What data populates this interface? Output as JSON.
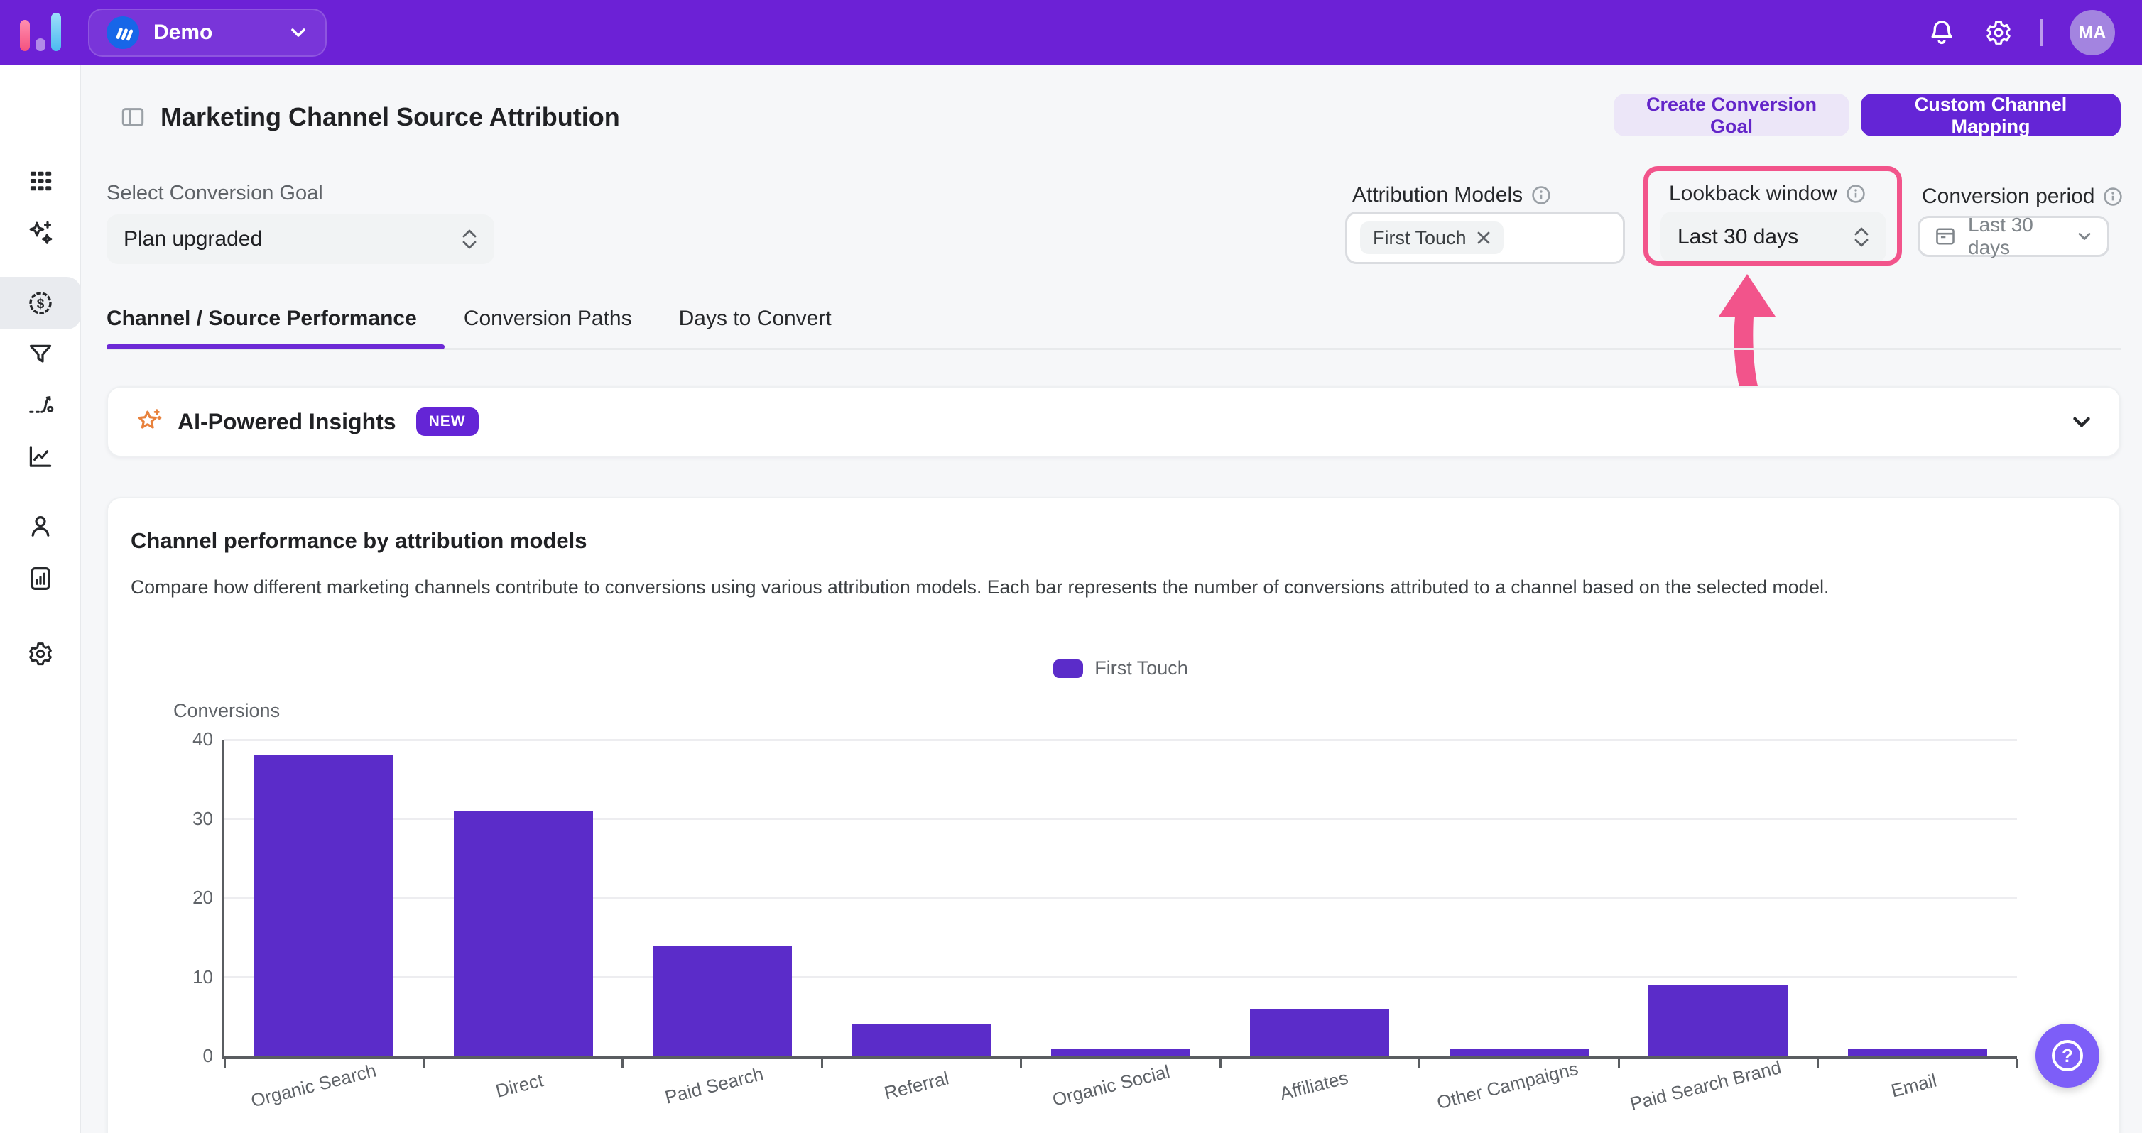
{
  "topbar": {
    "project_name": "Demo",
    "avatar_initials": "MA"
  },
  "sidebar": {
    "items": [
      {
        "name": "boards"
      },
      {
        "name": "ai-assistant"
      },
      {
        "name": "revenue-attribution",
        "active": true
      },
      {
        "name": "funnels"
      },
      {
        "name": "flows"
      },
      {
        "name": "insights"
      },
      {
        "name": "users"
      },
      {
        "name": "reports"
      },
      {
        "name": "settings"
      }
    ]
  },
  "header": {
    "title": "Marketing Channel Source Attribution",
    "create_goal_label": "Create Conversion Goal",
    "custom_mapping_label": "Custom Channel Mapping"
  },
  "filters": {
    "conversion_goal": {
      "label": "Select Conversion Goal",
      "value": "Plan upgraded"
    },
    "attribution_models": {
      "label": "Attribution Models",
      "chip_label": "First Touch"
    },
    "lookback_window": {
      "label": "Lookback window",
      "value": "Last 30 days"
    },
    "conversion_period": {
      "label": "Conversion period",
      "value": "Last 30 days"
    }
  },
  "tabs": [
    {
      "label": "Channel / Source Performance",
      "active": true
    },
    {
      "label": "Conversion Paths",
      "active": false
    },
    {
      "label": "Days to Convert",
      "active": false
    }
  ],
  "ai_insights": {
    "title": "AI-Powered Insights",
    "badge": "NEW"
  },
  "chart_card": {
    "title": "Channel performance by attribution models",
    "description": "Compare how different marketing channels contribute to conversions using various attribution models. Each bar represents the number of conversions attributed to a channel based on the selected model."
  },
  "chart_data": {
    "type": "bar",
    "title": "Channel performance by attribution models",
    "categories": [
      "Organic Search",
      "Direct",
      "Paid Search",
      "Referral",
      "Organic Social",
      "Affiliates",
      "Other Campaigns",
      "Paid Search Brand",
      "Email"
    ],
    "values": [
      38,
      31,
      14,
      4,
      1,
      6,
      1,
      9,
      1
    ],
    "series_name": "First Touch",
    "legend": [
      "First Touch"
    ],
    "xlabel": "",
    "ylabel": "Conversions",
    "ylim": [
      0,
      40
    ],
    "yticks": [
      0,
      10,
      20,
      30,
      40
    ],
    "grid": true,
    "legend_position": "top",
    "bar_color": "#5b2cc9"
  },
  "help_button": {
    "label": "?"
  },
  "colors": {
    "topbar_purple": "#6c21d6",
    "accent_purple": "#6425d6",
    "bar_purple": "#5b2cc9",
    "highlight_pink": "#f2548b",
    "page_bg": "#f6f7f9"
  }
}
